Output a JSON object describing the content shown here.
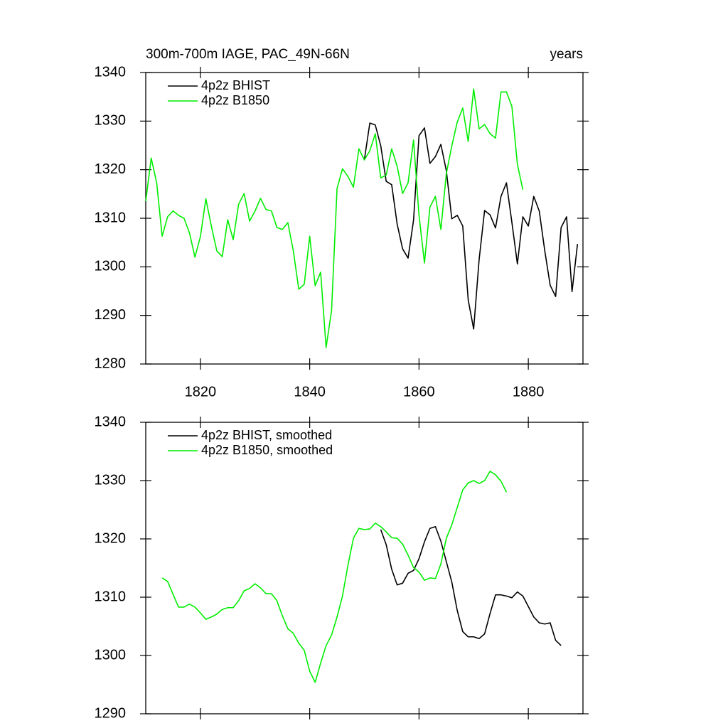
{
  "chart_data": [
    {
      "type": "line",
      "title": "300m-700m IAGE, PAC_49N-66N",
      "x_unit_label": "years",
      "x": [
        1810,
        1811,
        1812,
        1813,
        1814,
        1815,
        1816,
        1817,
        1818,
        1819,
        1820,
        1821,
        1822,
        1823,
        1824,
        1825,
        1826,
        1827,
        1828,
        1829,
        1830,
        1831,
        1832,
        1833,
        1834,
        1835,
        1836,
        1837,
        1838,
        1839,
        1840,
        1841,
        1842,
        1843,
        1844,
        1845,
        1846,
        1847,
        1848,
        1849,
        1850,
        1851,
        1852,
        1853,
        1854,
        1855,
        1856,
        1857,
        1858,
        1859,
        1860,
        1861,
        1862,
        1863,
        1864,
        1865,
        1866,
        1867,
        1868,
        1869,
        1870,
        1871,
        1872,
        1873,
        1874,
        1875,
        1876,
        1877,
        1878,
        1879,
        1880,
        1881,
        1882,
        1883,
        1884,
        1885,
        1886,
        1887,
        1888,
        1889
      ],
      "series": [
        {
          "name": "4p2z BHIST",
          "color": "#000000",
          "values": [
            null,
            null,
            null,
            null,
            null,
            null,
            null,
            null,
            null,
            null,
            null,
            null,
            null,
            null,
            null,
            null,
            null,
            null,
            null,
            null,
            null,
            null,
            null,
            null,
            null,
            null,
            null,
            null,
            null,
            null,
            null,
            null,
            null,
            null,
            null,
            null,
            null,
            null,
            null,
            null,
            1322,
            1329.6,
            1329.2,
            1324.9,
            1317.6,
            1316.9,
            1308.8,
            1303.7,
            1301.8,
            1309.6,
            1327,
            1328.6,
            1321.3,
            1322.7,
            1325.2,
            1319.8,
            1309.9,
            1310.6,
            1308.4,
            1293.2,
            1287.2,
            1301.5,
            1311.6,
            1310.7,
            1308,
            1314.5,
            1317.3,
            1309.1,
            1300.6,
            1310.3,
            1308.4,
            1314.5,
            1311.5,
            1303.4,
            1296.2,
            1293.9,
            1308.1,
            1310.3,
            1294.9,
            1304.7
          ]
        },
        {
          "name": "4p2z B1850",
          "color": "#00ee00",
          "values": [
            1313.5,
            1322.4,
            1317.3,
            1306.3,
            1310.3,
            1311.5,
            1310.6,
            1310,
            1307,
            1302,
            1306.2,
            1314,
            1308.4,
            1303.3,
            1302.1,
            1309.7,
            1305.6,
            1312.9,
            1315.1,
            1309.4,
            1311.5,
            1314.1,
            1311.8,
            1311.5,
            1308.1,
            1307.7,
            1309.1,
            1303.3,
            1295.4,
            1296.4,
            1306.3,
            1296.1,
            1298.9,
            1283.4,
            1291,
            1316.1,
            1320.2,
            1318.6,
            1316.4,
            1324.3,
            1322,
            1323.9,
            1327.4,
            1318.3,
            1318.9,
            1324.3,
            1320.7,
            1315.1,
            1317.3,
            1326.1,
            1310.6,
            1300.8,
            1312.3,
            1314.5,
            1307.7,
            1319.2,
            1324.9,
            1329.8,
            1332.7,
            1325.8,
            1336.6,
            1328.4,
            1329.3,
            1327.4,
            1326.5,
            1336,
            1336,
            1333,
            1321.1,
            1315.9,
            null,
            null,
            null,
            null,
            null,
            null,
            null,
            null,
            null,
            null
          ]
        }
      ],
      "xlim": [
        1810,
        1890
      ],
      "xticks": [
        1820,
        1840,
        1860,
        1880
      ],
      "ylim": [
        1280,
        1340
      ],
      "yticks": [
        1280,
        1290,
        1300,
        1310,
        1320,
        1330,
        1340
      ],
      "legend": "upper left"
    },
    {
      "type": "line",
      "x": [
        1813,
        1814,
        1815,
        1816,
        1817,
        1818,
        1819,
        1820,
        1821,
        1822,
        1823,
        1824,
        1825,
        1826,
        1827,
        1828,
        1829,
        1830,
        1831,
        1832,
        1833,
        1834,
        1835,
        1836,
        1837,
        1838,
        1839,
        1840,
        1841,
        1842,
        1843,
        1844,
        1845,
        1846,
        1847,
        1848,
        1849,
        1850,
        1851,
        1852,
        1853,
        1854,
        1855,
        1856,
        1857,
        1858,
        1859,
        1860,
        1861,
        1862,
        1863,
        1864,
        1865,
        1866,
        1867,
        1868,
        1869,
        1870,
        1871,
        1872,
        1873,
        1874,
        1875,
        1876,
        1877,
        1878,
        1879,
        1880,
        1881,
        1882,
        1883,
        1884,
        1885,
        1886
      ],
      "series": [
        {
          "name": "4p2z BHIST, smoothed",
          "color": "#000000",
          "values": [
            null,
            null,
            null,
            null,
            null,
            null,
            null,
            null,
            null,
            null,
            null,
            null,
            null,
            null,
            null,
            null,
            null,
            null,
            null,
            null,
            null,
            null,
            null,
            null,
            null,
            null,
            null,
            null,
            null,
            null,
            null,
            null,
            null,
            null,
            null,
            null,
            null,
            null,
            null,
            null,
            1321.6,
            1319,
            1314.8,
            1312.1,
            1312.4,
            1314.1,
            1314.6,
            1316.6,
            1319.5,
            1321.8,
            1322.1,
            1319.6,
            1316.1,
            1312.6,
            1307.7,
            1304.1,
            1303.2,
            1303.2,
            1302.9,
            1303.7,
            1307.2,
            1310.4,
            1310.4,
            1310.2,
            1309.9,
            1310.9,
            1310.2,
            1308.4,
            1306.6,
            1305.6,
            1305.4,
            1305.6,
            1302.6,
            1301.7
          ]
        },
        {
          "name": "4p2z B1850, smoothed",
          "color": "#00ee00",
          "values": [
            1313.3,
            1312.7,
            1310.5,
            1308.3,
            1308.3,
            1308.8,
            1308.3,
            1307.3,
            1306.2,
            1306.6,
            1307.1,
            1307.9,
            1308.2,
            1308.2,
            1309.4,
            1311.1,
            1311.5,
            1312.3,
            1311.6,
            1310.6,
            1310.6,
            1309.4,
            1306.8,
            1304.6,
            1303.8,
            1302.1,
            1300.9,
            1297.3,
            1295.4,
            1298.7,
            1301.7,
            1303.5,
            1306.6,
            1310.2,
            1315.5,
            1320.1,
            1321.8,
            1321.6,
            1321.7,
            1322.7,
            1322.1,
            1321.2,
            1320.2,
            1320.1,
            1319.1,
            1317.2,
            1315.1,
            1314.3,
            1312.9,
            1313.3,
            1313.2,
            1315.7,
            1320.1,
            1322.4,
            1325.4,
            1328.4,
            1329.6,
            1330,
            1329.5,
            1330,
            1331.6,
            1331,
            1329.9,
            1328,
            null,
            null,
            null,
            null,
            null,
            null,
            null,
            null,
            null,
            null
          ]
        }
      ],
      "xlim": [
        1810,
        1890
      ],
      "xticks": [
        1820,
        1840,
        1860,
        1880
      ],
      "ylim": [
        1290,
        1340
      ],
      "yticks": [
        1290,
        1300,
        1310,
        1320,
        1330,
        1340
      ],
      "legend": "upper left"
    }
  ]
}
